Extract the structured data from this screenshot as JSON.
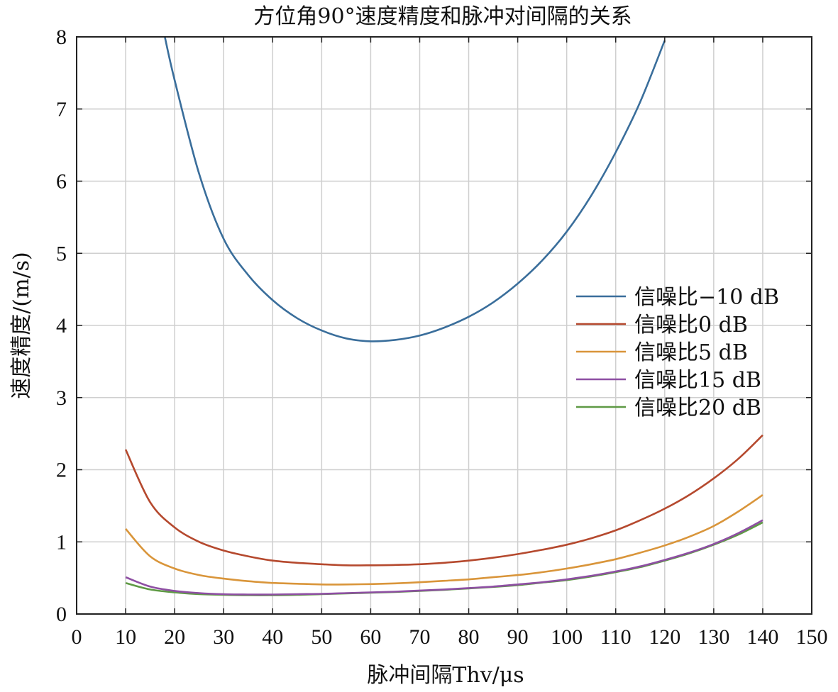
{
  "chart_data": {
    "type": "line",
    "title": "方位角90°速度精度和脉冲对间隔的关系",
    "xlabel": "脉冲间隔Thv/μs",
    "ylabel": "速度精度/(m/s)",
    "xlim": [
      0,
      150
    ],
    "ylim": [
      0,
      8
    ],
    "xticks": [
      0,
      10,
      20,
      30,
      40,
      50,
      60,
      70,
      80,
      90,
      100,
      110,
      120,
      130,
      140,
      150
    ],
    "yticks": [
      0,
      1,
      2,
      3,
      4,
      5,
      6,
      7,
      8
    ],
    "grid": true,
    "legend_position": "right",
    "series": [
      {
        "name": "信噪比−10 dB",
        "color": "#3a6e9b",
        "x": [
          18,
          20,
          25,
          30,
          35,
          40,
          45,
          50,
          55,
          60,
          65,
          70,
          75,
          80,
          85,
          90,
          95,
          100,
          105,
          110,
          115,
          120
        ],
        "y": [
          8.0,
          7.4,
          6.1,
          5.2,
          4.7,
          4.35,
          4.1,
          3.93,
          3.82,
          3.78,
          3.8,
          3.86,
          3.97,
          4.12,
          4.32,
          4.58,
          4.9,
          5.3,
          5.8,
          6.4,
          7.1,
          7.95
        ]
      },
      {
        "name": "信噪比0 dB",
        "color": "#b5492e",
        "x": [
          10,
          15,
          20,
          25,
          30,
          35,
          40,
          45,
          50,
          55,
          60,
          65,
          70,
          75,
          80,
          85,
          90,
          95,
          100,
          105,
          110,
          115,
          120,
          125,
          130,
          135,
          140
        ],
        "y": [
          2.28,
          1.55,
          1.2,
          1.0,
          0.88,
          0.8,
          0.74,
          0.71,
          0.69,
          0.675,
          0.675,
          0.68,
          0.69,
          0.71,
          0.74,
          0.78,
          0.83,
          0.89,
          0.96,
          1.05,
          1.16,
          1.3,
          1.46,
          1.65,
          1.88,
          2.15,
          2.48
        ]
      },
      {
        "name": "信噪比5 dB",
        "color": "#d9953a",
        "x": [
          10,
          15,
          20,
          25,
          30,
          35,
          40,
          45,
          50,
          55,
          60,
          65,
          70,
          75,
          80,
          85,
          90,
          95,
          100,
          105,
          110,
          115,
          120,
          125,
          130,
          135,
          140
        ],
        "y": [
          1.18,
          0.8,
          0.63,
          0.54,
          0.49,
          0.455,
          0.43,
          0.42,
          0.41,
          0.41,
          0.415,
          0.425,
          0.44,
          0.46,
          0.48,
          0.51,
          0.54,
          0.58,
          0.63,
          0.69,
          0.76,
          0.85,
          0.95,
          1.07,
          1.22,
          1.42,
          1.65
        ]
      },
      {
        "name": "信噪比15 dB",
        "color": "#8e4fa3",
        "x": [
          10,
          15,
          20,
          25,
          30,
          35,
          40,
          45,
          50,
          55,
          60,
          65,
          70,
          75,
          80,
          85,
          90,
          95,
          100,
          105,
          110,
          115,
          120,
          125,
          130,
          135,
          140
        ],
        "y": [
          0.51,
          0.38,
          0.32,
          0.29,
          0.275,
          0.27,
          0.27,
          0.275,
          0.28,
          0.29,
          0.3,
          0.31,
          0.325,
          0.34,
          0.36,
          0.38,
          0.41,
          0.44,
          0.48,
          0.53,
          0.59,
          0.66,
          0.75,
          0.85,
          0.97,
          1.12,
          1.3
        ]
      },
      {
        "name": "信噪比20 dB",
        "color": "#5f9a45",
        "x": [
          10,
          15,
          20,
          25,
          30,
          35,
          40,
          45,
          50,
          55,
          60,
          65,
          70,
          75,
          80,
          85,
          90,
          95,
          100,
          105,
          110,
          115,
          120,
          125,
          130,
          135,
          140
        ],
        "y": [
          0.43,
          0.34,
          0.3,
          0.275,
          0.265,
          0.26,
          0.26,
          0.265,
          0.275,
          0.285,
          0.295,
          0.305,
          0.32,
          0.335,
          0.355,
          0.375,
          0.4,
          0.435,
          0.47,
          0.52,
          0.58,
          0.65,
          0.74,
          0.84,
          0.96,
          1.1,
          1.27
        ]
      }
    ]
  }
}
